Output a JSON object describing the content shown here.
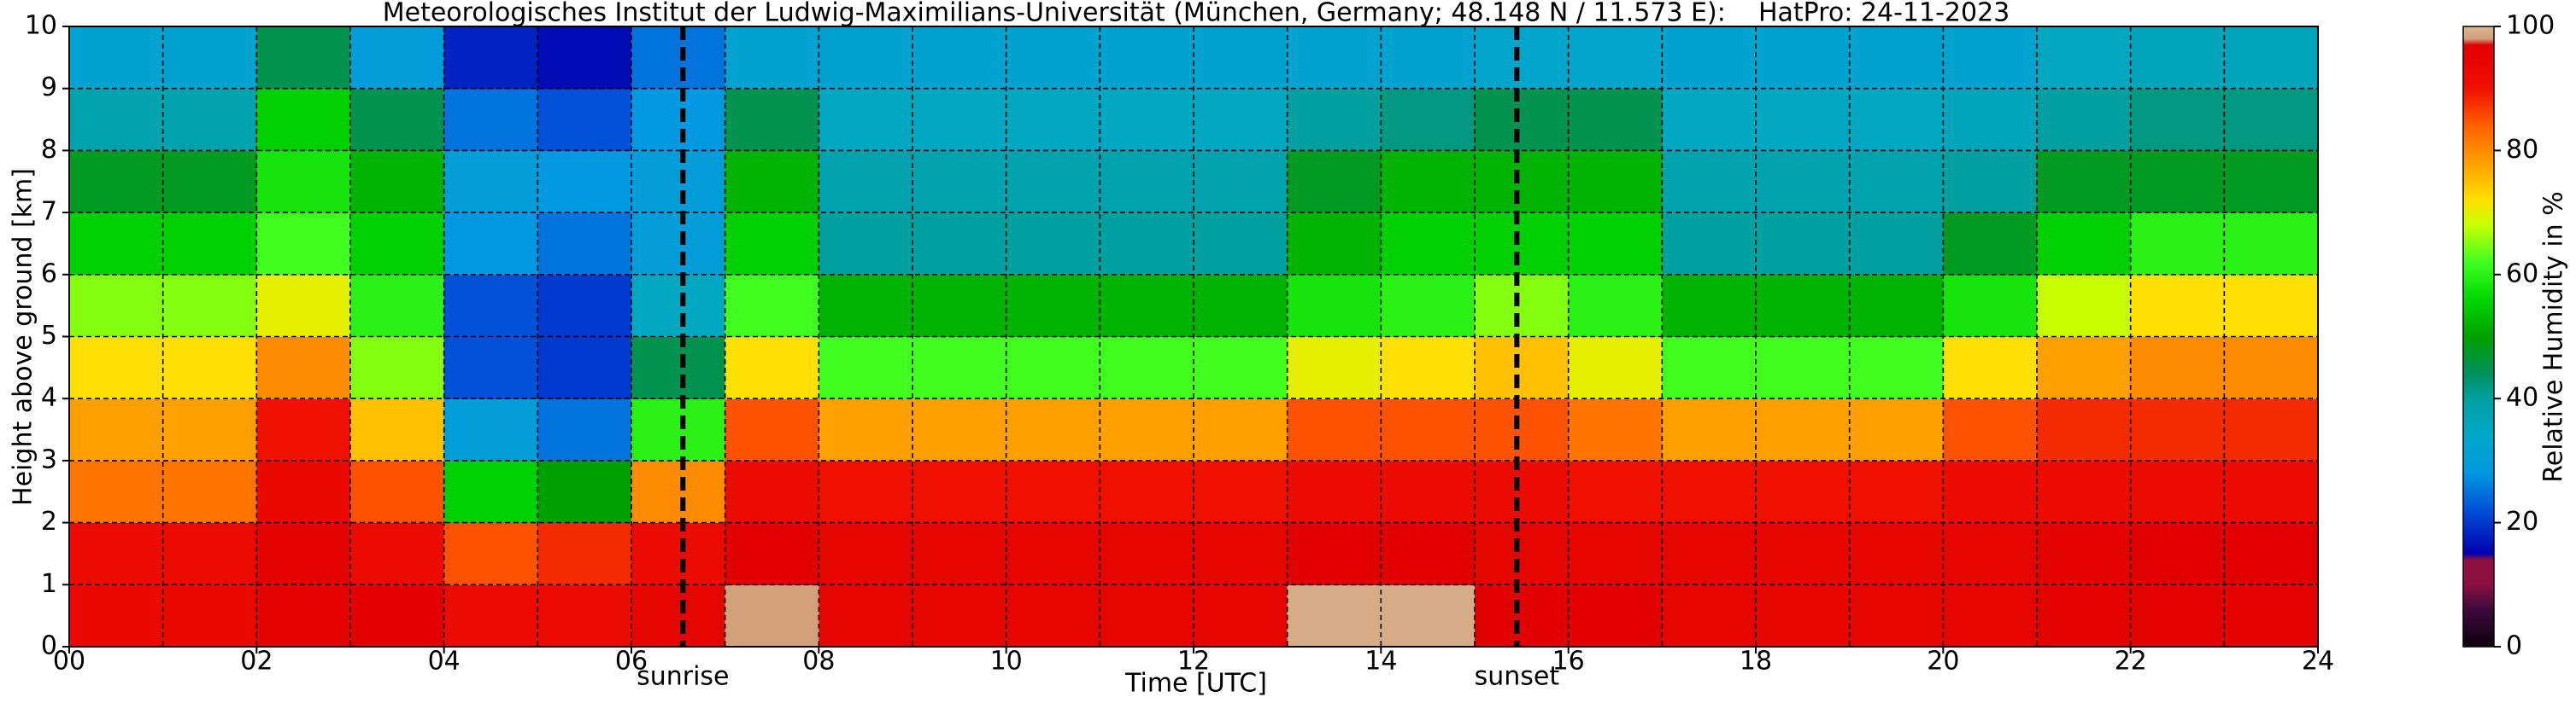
{
  "chart_data": {
    "type": "heatmap",
    "title": "Meteorologisches Institut der Ludwig-Maximilians-Universität (München, Germany; 48.148 N / 11.573 E):    HatPro: 24-11-2023",
    "xlabel": "Time [UTC]",
    "ylabel": "Height above ground [km]",
    "colorbar_label": "Relative Humidity in %",
    "xlim": [
      0,
      24
    ],
    "ylim": [
      0,
      10
    ],
    "xticks": [
      {
        "value": 0,
        "label": "00"
      },
      {
        "value": 2,
        "label": "02"
      },
      {
        "value": 4,
        "label": "04"
      },
      {
        "value": 6,
        "label": "06"
      },
      {
        "value": 8,
        "label": "08"
      },
      {
        "value": 10,
        "label": "10"
      },
      {
        "value": 12,
        "label": "12"
      },
      {
        "value": 14,
        "label": "14"
      },
      {
        "value": 16,
        "label": "16"
      },
      {
        "value": 18,
        "label": "18"
      },
      {
        "value": 20,
        "label": "20"
      },
      {
        "value": 22,
        "label": "22"
      },
      {
        "value": 24,
        "label": "24"
      }
    ],
    "x_minor_grid": [
      1,
      3,
      5,
      7,
      9,
      11,
      13,
      15,
      17,
      19,
      21,
      23
    ],
    "yticks": [
      0,
      1,
      2,
      3,
      4,
      5,
      6,
      7,
      8,
      9,
      10
    ],
    "grid": true,
    "clim": [
      0,
      100
    ],
    "cticks": [
      0,
      20,
      40,
      60,
      80,
      100
    ],
    "colormap": [
      [
        0,
        "#100010"
      ],
      [
        6,
        "#3a0a3a"
      ],
      [
        10,
        "#8c1040"
      ],
      [
        14,
        "#8c1040"
      ],
      [
        15,
        "#0000b0"
      ],
      [
        22,
        "#0050d8"
      ],
      [
        28,
        "#0098e0"
      ],
      [
        34,
        "#00a8c8"
      ],
      [
        40,
        "#00a0a0"
      ],
      [
        44,
        "#009060"
      ],
      [
        50,
        "#00a000"
      ],
      [
        56,
        "#00d800"
      ],
      [
        62,
        "#40ff20"
      ],
      [
        68,
        "#c8ff00"
      ],
      [
        72,
        "#ffe000"
      ],
      [
        78,
        "#ffa000"
      ],
      [
        84,
        "#ff6000"
      ],
      [
        90,
        "#f01000"
      ],
      [
        97,
        "#e00000"
      ],
      [
        98,
        "#d2a07a"
      ],
      [
        100,
        "#d8b890"
      ]
    ],
    "annotations": [
      {
        "x": 6.55,
        "label": "sunrise"
      },
      {
        "x": 15.45,
        "label": "sunset"
      }
    ],
    "x_edges": [
      0,
      1,
      2,
      3,
      4,
      5,
      6,
      7,
      8,
      9,
      10,
      11,
      12,
      13,
      14,
      15,
      16,
      17,
      18,
      19,
      20,
      21,
      22,
      23,
      24
    ],
    "y_edges": [
      0,
      1,
      2,
      3,
      4,
      5,
      6,
      7,
      8,
      9,
      10
    ],
    "z": [
      [
        93,
        92,
        82,
        78,
        72,
        65,
        55,
        48,
        38,
        32
      ],
      [
        93,
        92,
        82,
        78,
        72,
        65,
        55,
        48,
        38,
        32
      ],
      [
        96,
        96,
        93,
        90,
        80,
        70,
        62,
        58,
        55,
        45
      ],
      [
        97,
        92,
        85,
        75,
        65,
        60,
        55,
        52,
        45,
        30
      ],
      [
        92,
        85,
        55,
        30,
        22,
        22,
        28,
        30,
        25,
        18
      ],
      [
        92,
        88,
        50,
        25,
        20,
        20,
        25,
        28,
        22,
        16
      ],
      [
        95,
        92,
        80,
        60,
        45,
        35,
        30,
        30,
        28,
        25
      ],
      [
        98,
        97,
        92,
        85,
        72,
        62,
        55,
        52,
        45,
        32
      ],
      [
        95,
        95,
        90,
        78,
        62,
        52,
        40,
        38,
        35,
        32
      ],
      [
        95,
        95,
        90,
        78,
        62,
        52,
        40,
        38,
        35,
        32
      ],
      [
        95,
        95,
        90,
        78,
        62,
        52,
        40,
        38,
        35,
        32
      ],
      [
        95,
        95,
        90,
        78,
        62,
        52,
        40,
        38,
        35,
        32
      ],
      [
        95,
        95,
        90,
        78,
        62,
        52,
        40,
        38,
        35,
        32
      ],
      [
        99,
        97,
        92,
        85,
        70,
        58,
        52,
        48,
        40,
        32
      ],
      [
        99,
        97,
        92,
        85,
        72,
        60,
        55,
        52,
        42,
        32
      ],
      [
        97,
        95,
        92,
        85,
        75,
        65,
        55,
        52,
        45,
        33
      ],
      [
        97,
        95,
        90,
        82,
        70,
        60,
        55,
        52,
        45,
        33
      ],
      [
        95,
        95,
        90,
        78,
        62,
        52,
        40,
        38,
        35,
        32
      ],
      [
        95,
        95,
        90,
        78,
        62,
        52,
        40,
        38,
        35,
        32
      ],
      [
        95,
        95,
        90,
        78,
        62,
        52,
        40,
        38,
        35,
        32
      ],
      [
        95,
        95,
        92,
        85,
        72,
        58,
        48,
        40,
        36,
        32
      ],
      [
        96,
        96,
        92,
        88,
        78,
        68,
        55,
        48,
        40,
        35
      ],
      [
        96,
        97,
        92,
        88,
        80,
        72,
        60,
        48,
        42,
        36
      ],
      [
        96,
        97,
        92,
        88,
        80,
        72,
        60,
        48,
        42,
        36
      ]
    ]
  }
}
